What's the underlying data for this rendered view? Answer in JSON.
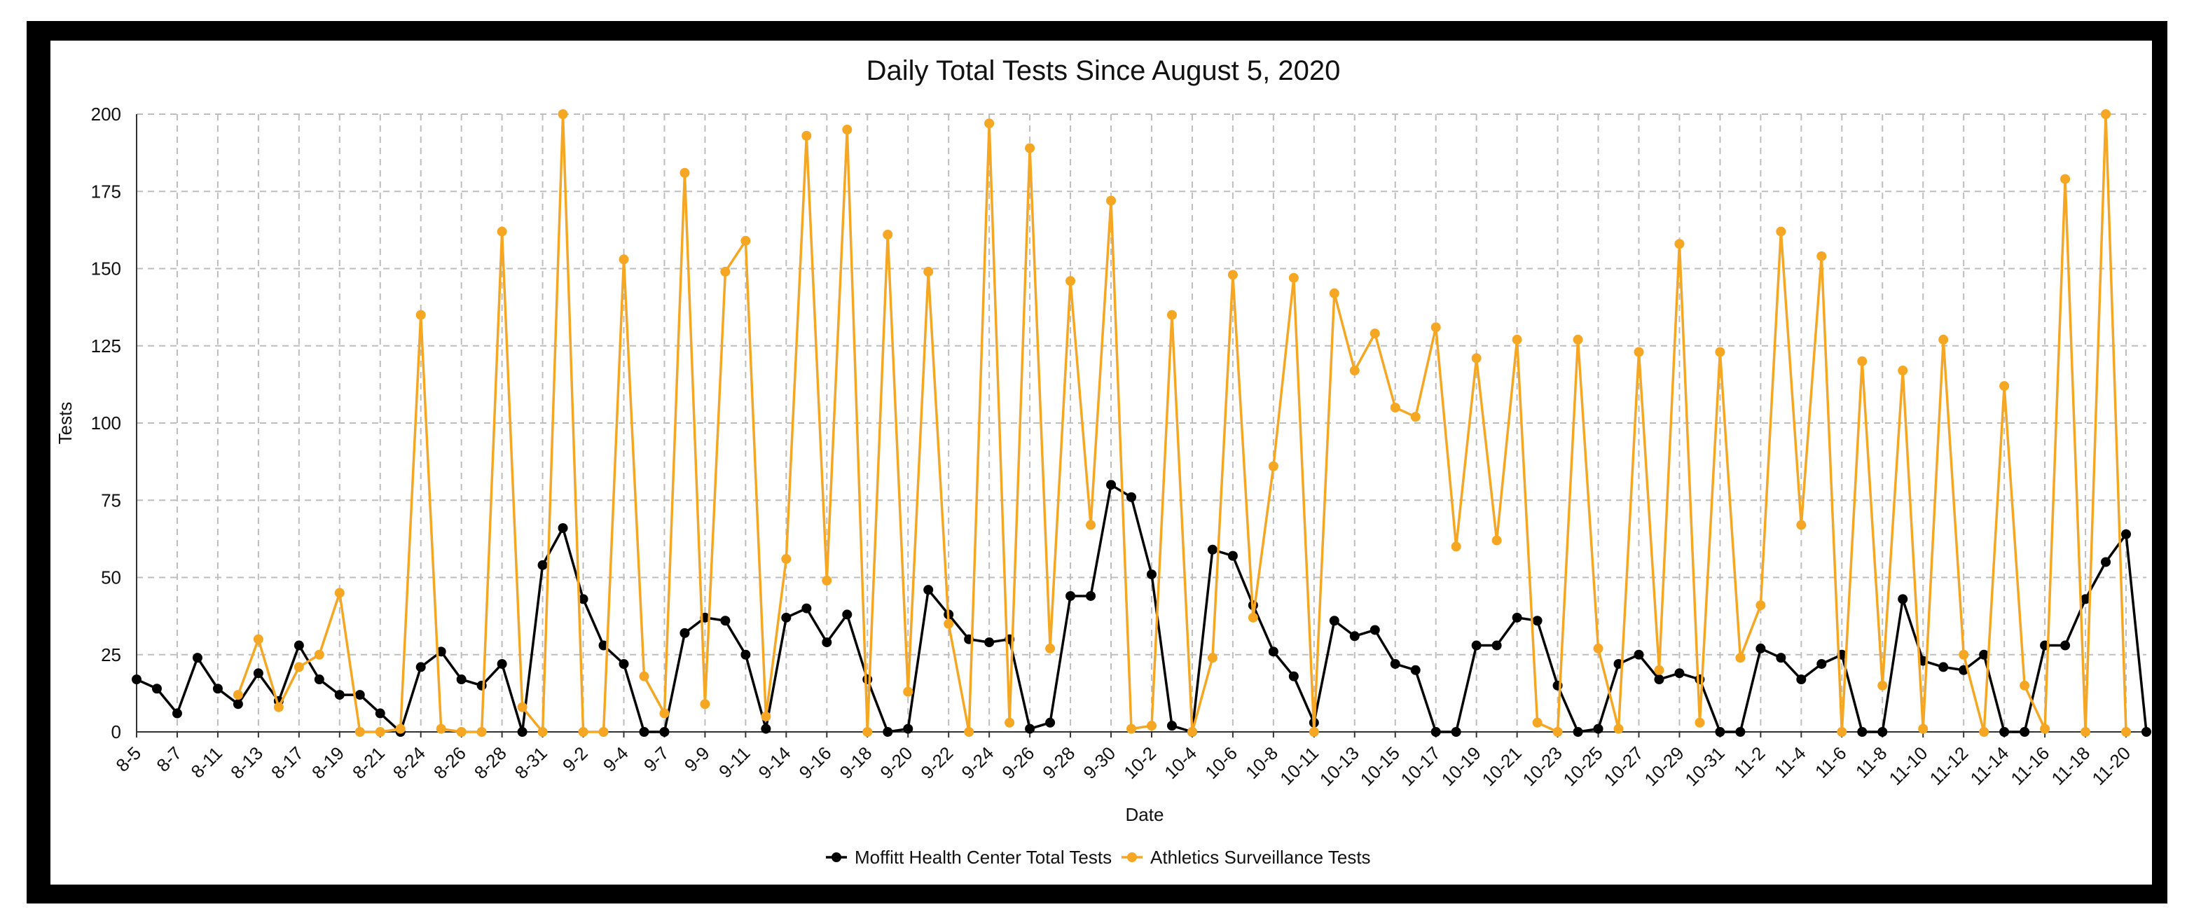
{
  "chart_data": {
    "type": "line",
    "title": "Daily Total Tests Since August 5, 2020",
    "xlabel": "Date",
    "ylabel": "Tests",
    "ylim": [
      0,
      200
    ],
    "yticks": [
      0,
      25,
      50,
      75,
      100,
      125,
      150,
      175,
      200
    ],
    "grid": true,
    "legend_position": "bottom-center",
    "categories": [
      "8-5",
      "8-6",
      "8-7",
      "8-10",
      "8-11",
      "8-12",
      "8-13",
      "8-14",
      "8-17",
      "8-18",
      "8-19",
      "8-20",
      "8-21",
      "8-22",
      "8-24",
      "8-25",
      "8-26",
      "8-27",
      "8-28",
      "8-29",
      "8-31",
      "9-1",
      "9-2",
      "9-3",
      "9-4",
      "9-5",
      "9-7",
      "9-8",
      "9-9",
      "9-10",
      "9-11",
      "9-12",
      "9-14",
      "9-15",
      "9-16",
      "9-17",
      "9-18",
      "9-19",
      "9-20",
      "9-21",
      "9-22",
      "9-23",
      "9-24",
      "9-25",
      "9-26",
      "9-27",
      "9-28",
      "9-29",
      "9-30",
      "10-1",
      "10-2",
      "10-3",
      "10-4",
      "10-5",
      "10-6",
      "10-7",
      "10-8",
      "10-9",
      "10-11",
      "10-12",
      "10-13",
      "10-14",
      "10-15",
      "10-16",
      "10-17",
      "10-18",
      "10-19",
      "10-20",
      "10-21",
      "10-22",
      "10-23",
      "10-24",
      "10-25",
      "10-26",
      "10-27",
      "10-28",
      "10-29",
      "10-30",
      "10-31",
      "11-1",
      "11-2",
      "11-3",
      "11-4",
      "11-5",
      "11-6",
      "11-7",
      "11-8",
      "11-9",
      "11-10",
      "11-11",
      "11-12",
      "11-13",
      "11-14",
      "11-15",
      "11-16",
      "11-17",
      "11-18",
      "11-19",
      "11-20",
      "11-21"
    ],
    "x_tick_labels": [
      "8-5",
      "8-7",
      "8-11",
      "8-13",
      "8-17",
      "8-19",
      "8-21",
      "8-24",
      "8-26",
      "8-28",
      "8-31",
      "9-2",
      "9-4",
      "9-7",
      "9-9",
      "9-11",
      "9-14",
      "9-16",
      "9-18",
      "9-20",
      "9-22",
      "9-24",
      "9-26",
      "9-28",
      "9-30",
      "10-2",
      "10-4",
      "10-6",
      "10-8",
      "10-11",
      "10-13",
      "10-15",
      "10-17",
      "10-19",
      "10-21",
      "10-23",
      "10-25",
      "10-27",
      "10-29",
      "10-31",
      "11-2",
      "11-4",
      "11-6",
      "11-8",
      "11-10",
      "11-12",
      "11-14",
      "11-16",
      "11-18",
      "11-20"
    ],
    "series": [
      {
        "name": "Moffitt Health Center Total Tests",
        "color": "#000000",
        "values": [
          17,
          14,
          6,
          24,
          14,
          9,
          19,
          10,
          28,
          17,
          12,
          12,
          6,
          0,
          21,
          26,
          17,
          15,
          22,
          0,
          54,
          66,
          43,
          28,
          22,
          0,
          0,
          32,
          37,
          36,
          25,
          1,
          37,
          40,
          29,
          38,
          17,
          0,
          1,
          46,
          38,
          30,
          29,
          30,
          1,
          3,
          44,
          44,
          80,
          76,
          51,
          2,
          0,
          59,
          57,
          41,
          26,
          18,
          3,
          36,
          31,
          33,
          22,
          20,
          0,
          0,
          28,
          28,
          37,
          36,
          15,
          0,
          1,
          22,
          25,
          17,
          19,
          17,
          0,
          0,
          27,
          24,
          17,
          22,
          25,
          0,
          0,
          43,
          23,
          21,
          20,
          25,
          0,
          0,
          28,
          28,
          43,
          55,
          64,
          0
        ]
      },
      {
        "name": "Athletics Surveillance Tests",
        "color": "#F5A623",
        "values": [
          null,
          null,
          null,
          null,
          null,
          12,
          30,
          8,
          21,
          25,
          45,
          0,
          0,
          1,
          135,
          1,
          0,
          0,
          162,
          8,
          0,
          202,
          0,
          0,
          153,
          18,
          6,
          181,
          9,
          149,
          159,
          5,
          56,
          193,
          49,
          195,
          0,
          161,
          13,
          149,
          35,
          0,
          197,
          3,
          189,
          27,
          146,
          67,
          172,
          1,
          2,
          135,
          0,
          24,
          148,
          37,
          86,
          147,
          0,
          142,
          117,
          129,
          105,
          102,
          131,
          60,
          121,
          62,
          127,
          3,
          0,
          127,
          27,
          1,
          123,
          20,
          158,
          3,
          123,
          24,
          41,
          162,
          67,
          154,
          0,
          120,
          15,
          117,
          1,
          127,
          25,
          0,
          112,
          15,
          1,
          179,
          0,
          202,
          0,
          null
        ]
      }
    ]
  }
}
